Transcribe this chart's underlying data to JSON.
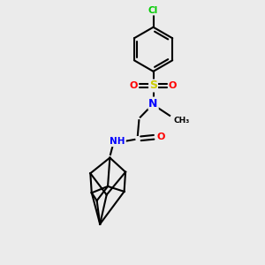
{
  "bg_color": "#ebebeb",
  "atom_colors": {
    "C": "#000000",
    "Cl": "#00cc00",
    "S": "#cccc00",
    "O": "#ff0000",
    "N": "#0000ff",
    "H": "#888888"
  },
  "bond_color": "#000000",
  "bond_width": 1.5
}
